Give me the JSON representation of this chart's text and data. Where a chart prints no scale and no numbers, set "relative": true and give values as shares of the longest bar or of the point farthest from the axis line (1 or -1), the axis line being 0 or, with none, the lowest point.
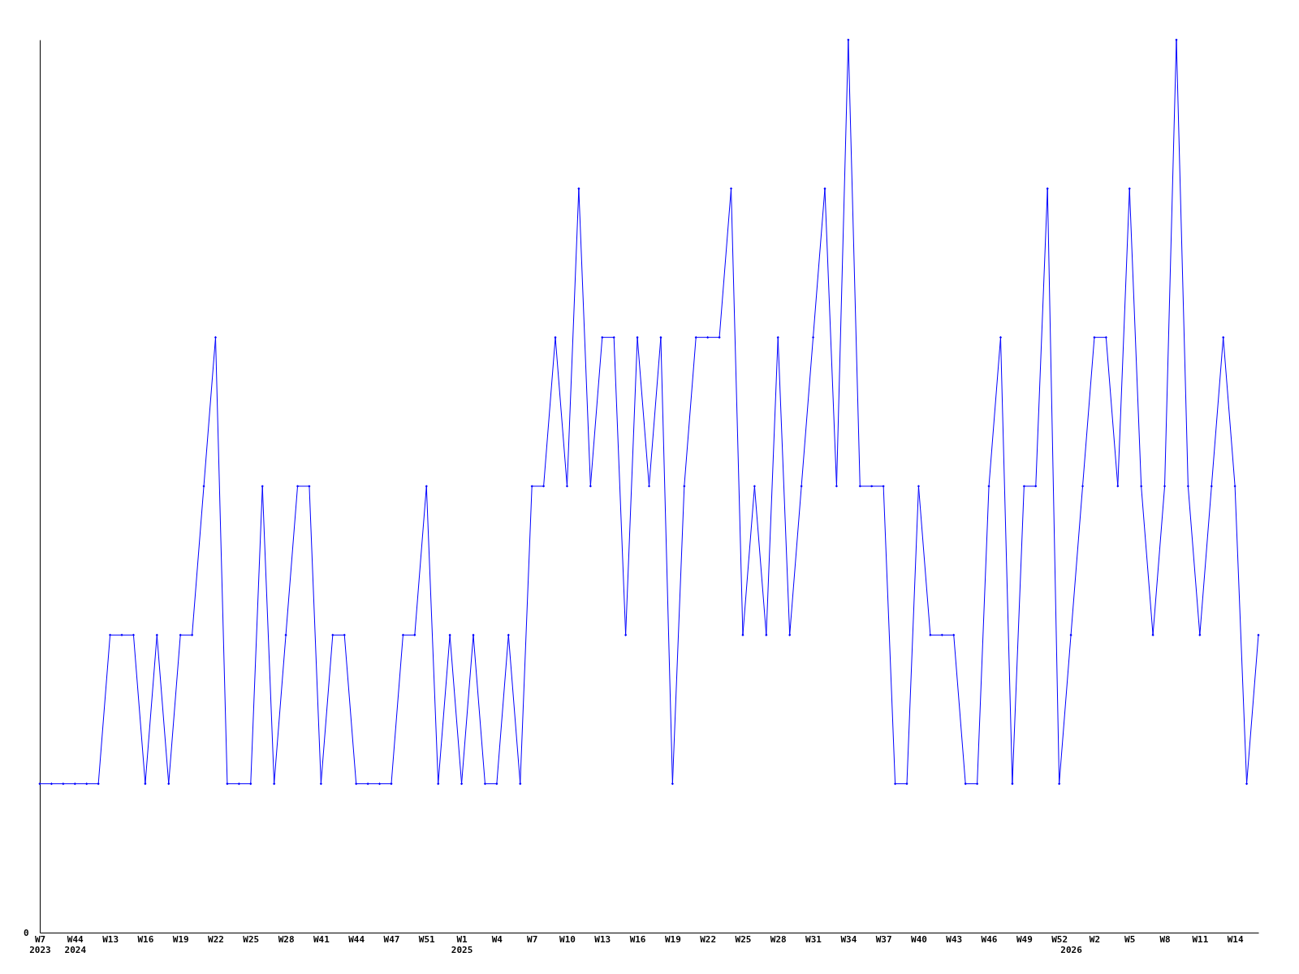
{
  "chart_data": {
    "type": "line",
    "relative": true,
    "marker": "diamond",
    "grid": false,
    "annotations": [
      "0"
    ],
    "categories": [
      "W7\n2023",
      null,
      null,
      "W44\n2024",
      null,
      null,
      "W13",
      null,
      null,
      "W16",
      null,
      null,
      "W19",
      null,
      null,
      "W22",
      null,
      null,
      "W25",
      null,
      null,
      "W28",
      null,
      null,
      "W41",
      null,
      null,
      "W44",
      null,
      null,
      "W47",
      null,
      null,
      "W51",
      null,
      null,
      "W1\n2025",
      null,
      null,
      "W4",
      null,
      null,
      "W7",
      null,
      null,
      "W10",
      null,
      null,
      "W13",
      null,
      null,
      "W16",
      null,
      null,
      "W19",
      null,
      null,
      "W22",
      null,
      null,
      "W25",
      null,
      null,
      "W28",
      null,
      null,
      "W31",
      null,
      null,
      "W34",
      null,
      null,
      "W37",
      null,
      null,
      "W40",
      null,
      null,
      "W43",
      null,
      null,
      "W46",
      null,
      null,
      "W49",
      null,
      null,
      "W52",
      "\n2026",
      null,
      "W2",
      null,
      null,
      "W5",
      null,
      null,
      "W8",
      null,
      null,
      "W11",
      null,
      null,
      "W14",
      null,
      null
    ],
    "series": [
      {
        "color": "#0000ff",
        "values": [
          0.1667,
          0.1667,
          0.1667,
          0.1667,
          0.1667,
          0.1667,
          0.3333,
          0.3333,
          0.3333,
          0.1667,
          0.3333,
          0.1667,
          0.3333,
          0.3333,
          0.5,
          0.6667,
          0.1667,
          0.1667,
          0.1667,
          0.5,
          0.1667,
          0.3333,
          0.5,
          0.5,
          0.1667,
          0.3333,
          0.3333,
          0.1667,
          0.1667,
          0.1667,
          0.1667,
          0.3333,
          0.3333,
          0.5,
          0.1667,
          0.3333,
          0.1667,
          0.3333,
          0.1667,
          0.1667,
          0.3333,
          0.1667,
          0.5,
          0.5,
          0.6667,
          0.5,
          0.8333,
          0.5,
          0.6667,
          0.6667,
          0.3333,
          0.6667,
          0.5,
          0.6667,
          0.1667,
          0.5,
          0.6667,
          0.6667,
          0.6667,
          0.8333,
          0.3333,
          0.5,
          0.3333,
          0.6667,
          0.3333,
          0.5,
          0.6667,
          0.8333,
          0.5,
          1,
          0.5,
          0.5,
          0.5,
          0.1667,
          0.1667,
          0.5,
          0.3333,
          0.3333,
          0.3333,
          0.1667,
          0.1667,
          0.5,
          0.6667,
          0.1667,
          0.5,
          0.5,
          0.8333,
          0.1667,
          0.3333,
          0.5,
          0.6667,
          0.6667,
          0.5,
          0.8333,
          0.5,
          0.3333,
          0.5,
          1,
          0.5,
          0.3333,
          0.5,
          0.6667,
          0.5,
          0.1667,
          0.3333
        ]
      }
    ]
  }
}
